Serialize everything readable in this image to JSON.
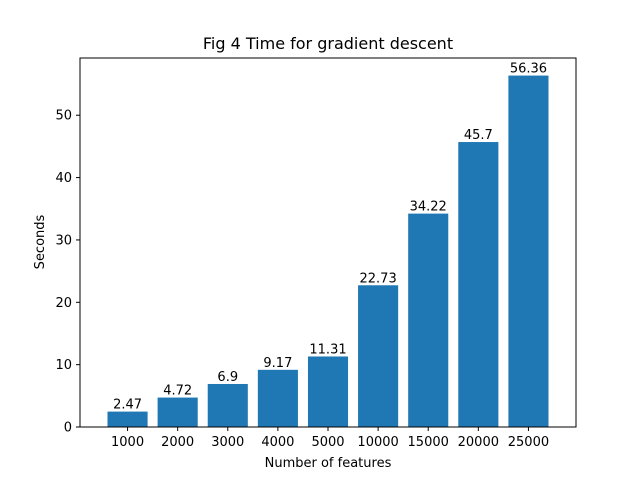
{
  "chart_data": {
    "type": "bar",
    "title": "Fig 4 Time for gradient descent",
    "xlabel": "Number of features",
    "ylabel": "Seconds",
    "categories": [
      "1000",
      "2000",
      "3000",
      "4000",
      "5000",
      "10000",
      "15000",
      "20000",
      "25000"
    ],
    "values": [
      2.47,
      4.72,
      6.9,
      9.17,
      11.31,
      22.73,
      34.22,
      45.7,
      56.36
    ],
    "data_labels": [
      "2.47",
      "4.72",
      "6.9",
      "9.17",
      "11.31",
      "22.73",
      "34.22",
      "45.7",
      "56.36"
    ],
    "ylim": [
      0,
      59.178
    ],
    "yticks": [
      0,
      10,
      20,
      30,
      40,
      50
    ],
    "bar_color": "#1f77b4",
    "grid": false,
    "legend": "none"
  }
}
